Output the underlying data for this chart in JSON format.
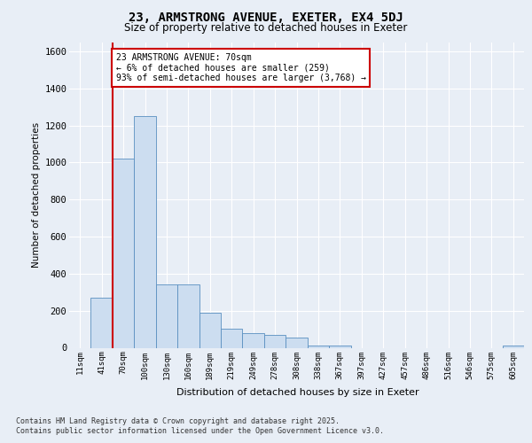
{
  "title1": "23, ARMSTRONG AVENUE, EXETER, EX4 5DJ",
  "title2": "Size of property relative to detached houses in Exeter",
  "xlabel": "Distribution of detached houses by size in Exeter",
  "ylabel": "Number of detached properties",
  "categories": [
    "11sqm",
    "41sqm",
    "70sqm",
    "100sqm",
    "130sqm",
    "160sqm",
    "189sqm",
    "219sqm",
    "249sqm",
    "278sqm",
    "308sqm",
    "338sqm",
    "367sqm",
    "397sqm",
    "427sqm",
    "457sqm",
    "486sqm",
    "516sqm",
    "546sqm",
    "575sqm",
    "605sqm"
  ],
  "values": [
    0,
    270,
    1020,
    1250,
    340,
    340,
    190,
    105,
    80,
    70,
    55,
    10,
    10,
    0,
    0,
    0,
    0,
    0,
    0,
    0,
    10
  ],
  "bar_color": "#ccddf0",
  "bar_edge_color": "#5a8fc0",
  "annotation_title": "23 ARMSTRONG AVENUE: 70sqm",
  "annotation_line1": "← 6% of detached houses are smaller (259)",
  "annotation_line2": "93% of semi-detached houses are larger (3,768) →",
  "red_line_color": "#cc0000",
  "ylim_max": 1650,
  "yticks": [
    0,
    200,
    400,
    600,
    800,
    1000,
    1200,
    1400,
    1600
  ],
  "bg_color": "#e8eef6",
  "grid_color": "#ffffff",
  "footer1": "Contains HM Land Registry data © Crown copyright and database right 2025.",
  "footer2": "Contains public sector information licensed under the Open Government Licence v3.0."
}
